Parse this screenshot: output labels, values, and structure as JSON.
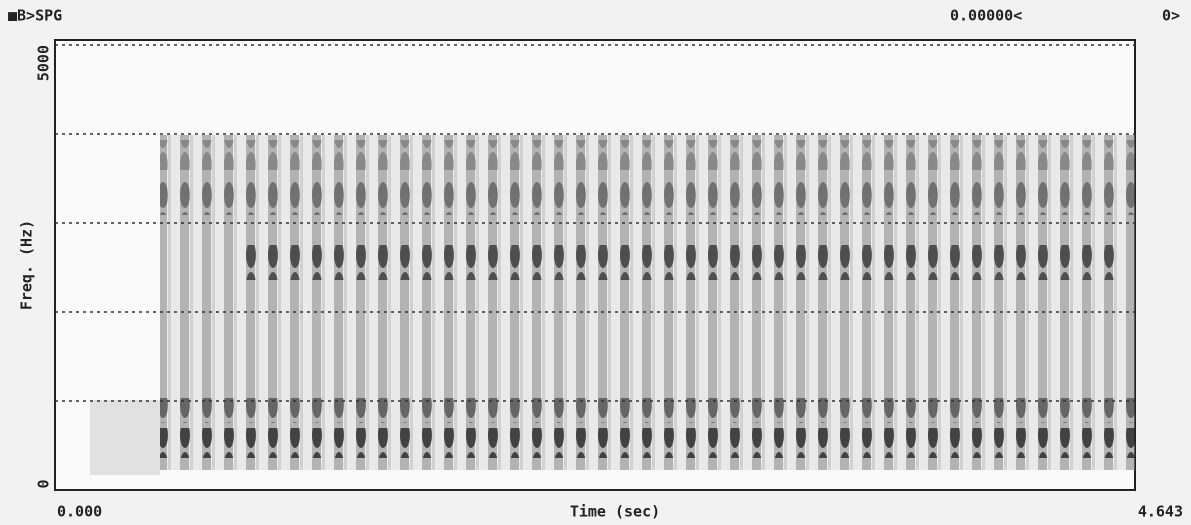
{
  "chart_data": {
    "type": "spectrogram",
    "header": {
      "left": "■B>SPG",
      "cursor": "0.00000<",
      "right": "0>"
    },
    "xlabel": "Time (sec)",
    "ylabel": "Freq. (Hz)",
    "xlim": [
      0,
      4.643
    ],
    "xticks": [
      {
        "value": 0,
        "label": "0.000"
      },
      {
        "value": 4.643,
        "label": "4.643"
      }
    ],
    "ylim": [
      0,
      5000
    ],
    "yticks": [
      0,
      5000
    ],
    "gridlines": [
      1000,
      2000,
      3000,
      4000,
      5000
    ],
    "grid": true
  }
}
